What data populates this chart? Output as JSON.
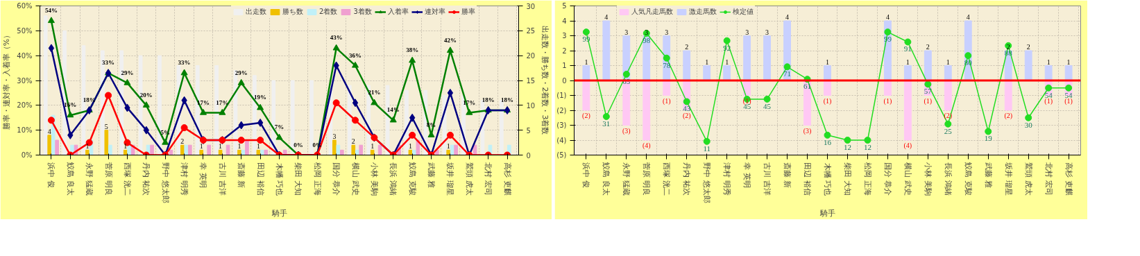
{
  "chart_data": [
    {
      "type": "bar",
      "xlabel": "騎手",
      "ylabel": "勝率・連対率・入着率（%）",
      "y2label": "出走数・勝ち数・2着数・3着数",
      "categories": [
        "浜中 俊",
        "鮫島 良太",
        "永野 猛蔵",
        "菅原 明良",
        "西塚 洸二",
        "丹内 祐次",
        "野中 悠太郎",
        "津村 明秀",
        "幸 英明",
        "古川 吉洋",
        "斎藤 新",
        "田辺 裕信",
        "木幡 巧也",
        "柴田 大知",
        "松岡 正海",
        "国分 恭介",
        "横山 武史",
        "小林 美駒",
        "長浜 鴻緒",
        "鮫島 克駿",
        "武藤 雅",
        "坂井 瑠星",
        "鷲頭 虎太",
        "北村 宏司",
        "高杉 吏麒"
      ],
      "ylim": [
        0,
        60
      ],
      "yticks": [
        {
          "value": 0,
          "label": "0%"
        },
        {
          "value": 10,
          "label": "10%"
        },
        {
          "value": 20,
          "label": "20%"
        },
        {
          "value": 30,
          "label": "30%"
        },
        {
          "value": 40,
          "label": "40%"
        },
        {
          "value": 50,
          "label": "50%"
        },
        {
          "value": 60,
          "label": "60%"
        }
      ],
      "y2lim": [
        0,
        30
      ],
      "y2ticks": [
        0,
        5,
        10,
        15,
        20,
        25,
        30
      ],
      "grid": true,
      "legend": "top",
      "series": [
        {
          "name": "出走数",
          "axis": "y2",
          "color": "#f0f0f0",
          "values": [
            28,
            25,
            22,
            21,
            21,
            20,
            20,
            18,
            18,
            18,
            17,
            16,
            15,
            15,
            15,
            14,
            14,
            14,
            14,
            13,
            13,
            12,
            12,
            11,
            11
          ]
        },
        {
          "name": "勝ち数",
          "axis": "y2",
          "color": "#f0c000",
          "values": [
            4,
            0,
            1,
            5,
            1,
            0,
            0,
            2,
            1,
            1,
            1,
            1,
            0,
            0,
            0,
            3,
            2,
            1,
            0,
            1,
            0,
            1,
            0,
            0,
            0
          ],
          "value_labels": [
            "4",
            null,
            "1",
            "5",
            "1",
            null,
            null,
            "2",
            "1",
            "1",
            "1",
            "1",
            null,
            null,
            null,
            "3",
            "2",
            "1",
            null,
            "1",
            null,
            "1",
            null,
            null,
            null
          ]
        },
        {
          "name": "2着数",
          "axis": "y2",
          "color": "#c0f0f8",
          "values": [
            8,
            2,
            3,
            2,
            3,
            2,
            0,
            2,
            0,
            0,
            1,
            1,
            0,
            0,
            0,
            2,
            1,
            0,
            0,
            1,
            0,
            2,
            0,
            2,
            2
          ]
        },
        {
          "name": "3着数",
          "axis": "y2",
          "color": "#f0a0d0",
          "values": [
            3,
            2,
            0,
            0,
            2,
            2,
            1,
            2,
            2,
            2,
            3,
            1,
            1,
            0,
            0,
            1,
            2,
            2,
            2,
            3,
            1,
            2,
            2,
            0,
            0
          ]
        },
        {
          "name": "入着率",
          "type": "line",
          "marker": "triangle",
          "color": "#008000",
          "values": [
            54,
            16,
            18,
            33,
            29,
            20,
            5,
            33,
            17,
            17,
            29,
            19,
            7,
            0,
            0,
            43,
            36,
            21,
            14,
            38,
            8,
            42,
            17,
            18,
            18
          ],
          "value_labels": [
            "54%",
            "16%",
            "18%",
            "33%",
            "29%",
            "20%",
            "5%",
            "33%",
            "17%",
            "17%",
            "29%",
            "19%",
            "7%",
            "0%",
            "0%",
            "43%",
            "36%",
            "21%",
            "14%",
            "38%",
            "8%",
            "42%",
            "17%",
            "18%",
            "18%"
          ]
        },
        {
          "name": "連対率",
          "type": "line",
          "marker": "diamond",
          "color": "#000080",
          "values": [
            43,
            8,
            18,
            33,
            19,
            10,
            0,
            22,
            6,
            6,
            12,
            13,
            0,
            0,
            0,
            36,
            21,
            7,
            0,
            15,
            0,
            25,
            0,
            18,
            18
          ]
        },
        {
          "name": "勝率",
          "type": "line",
          "marker": "circle",
          "color": "#ff0000",
          "values": [
            14,
            0,
            5,
            24,
            5,
            0,
            0,
            11,
            6,
            6,
            6,
            6,
            0,
            0,
            0,
            21,
            14,
            7,
            0,
            8,
            0,
            8,
            0,
            0,
            0
          ]
        }
      ]
    },
    {
      "type": "bar",
      "xlabel": "騎手",
      "categories": [
        "浜中 俊",
        "鮫島 良太",
        "永野 猛蔵",
        "菅原 明良",
        "西塚 洸二",
        "丹内 祐次",
        "野中 悠太郎",
        "津村 明秀",
        "幸 英明",
        "古川 吉洋",
        "斎藤 新",
        "田辺 裕信",
        "木幡 巧也",
        "柴田 大知",
        "松岡 正海",
        "国分 恭介",
        "横山 武史",
        "小林 美駒",
        "長浜 鴻緒",
        "鮫島 克駿",
        "武藤 雅",
        "坂井 瑠星",
        "鷲頭 虎太",
        "北村 宏司",
        "高杉 吏麒"
      ],
      "ylim": [
        -5,
        5
      ],
      "yticks": [
        {
          "value": -5,
          "label": "(5)"
        },
        {
          "value": -4,
          "label": "(4)"
        },
        {
          "value": -3,
          "label": "(3)"
        },
        {
          "value": -2,
          "label": "(2)"
        },
        {
          "value": -1,
          "label": "(1)"
        },
        0,
        1,
        2,
        3,
        4,
        5
      ],
      "y2lim": [
        0,
        120
      ],
      "grid": true,
      "legend": "top",
      "stacked": true,
      "ref_lines": [
        {
          "axis": "y",
          "value": 0,
          "color": "#ff0000"
        }
      ],
      "series": [
        {
          "name": "人気凡走馬数",
          "color": "#ffc8f4",
          "values": [
            -2,
            0,
            -3,
            -4,
            -1,
            -2,
            0,
            0,
            -1,
            0,
            0,
            -3,
            -1,
            0,
            0,
            -1,
            -4,
            -1,
            -2,
            0,
            0,
            -2,
            0,
            -1,
            -1
          ],
          "value_labels": [
            "(2)",
            null,
            "(3)",
            "(4)",
            "(1)",
            "(2)",
            null,
            null,
            "(1)",
            null,
            null,
            "(3)",
            "(1)",
            null,
            null,
            "(1)",
            "(4)",
            "(1)",
            "(2)",
            null,
            null,
            "(2)",
            null,
            "(1)",
            "(1)"
          ]
        },
        {
          "name": "激走馬数",
          "color": "#c8d0ff",
          "values": [
            1,
            4,
            3,
            3,
            3,
            2,
            1,
            1,
            3,
            3,
            4,
            0,
            1,
            0,
            0,
            4,
            1,
            2,
            1,
            4,
            0,
            2,
            2,
            1,
            1
          ],
          "value_labels": [
            "1",
            "4",
            "3",
            "3",
            "3",
            "2",
            "1",
            "1",
            "3",
            "3",
            "4",
            null,
            "1",
            null,
            null,
            "4",
            "1",
            "2",
            "1",
            "4",
            null,
            "2",
            "2",
            "1",
            "1"
          ]
        },
        {
          "name": "検定値",
          "type": "line",
          "axis": "y2",
          "marker": "circle",
          "color": "#22dd22",
          "values": [
            99,
            31,
            65,
            98,
            78,
            43,
            11,
            92,
            45,
            45,
            71,
            61,
            16,
            12,
            12,
            99,
            91,
            57,
            25,
            80,
            19,
            88,
            30,
            54,
            54
          ],
          "value_labels": [
            "99",
            "31",
            "65",
            "98",
            "78",
            "43",
            "11",
            "92",
            "45",
            "45",
            "71",
            "61",
            "16",
            "12",
            "12",
            "99",
            "91",
            "57",
            "25",
            "80",
            "19",
            "88",
            "30",
            "54",
            "54"
          ]
        }
      ]
    }
  ]
}
